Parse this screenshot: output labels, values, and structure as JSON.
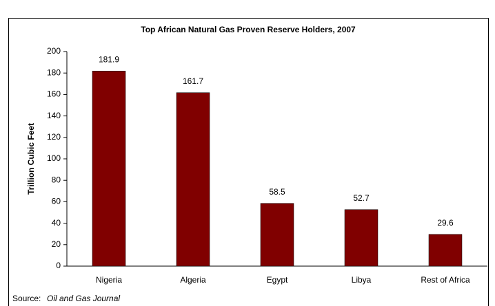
{
  "chart_data": {
    "type": "bar",
    "title": "Top African Natural Gas Proven Reserve Holders, 2007",
    "y_label": "Trillion Cubic Feet",
    "categories": [
      "Nigeria",
      "Algeria",
      "Egypt",
      "Libya",
      "Rest of Africa"
    ],
    "category_colors": [
      "#000000",
      "#8b1a1a",
      "#000000",
      "#000000",
      "#000000"
    ],
    "values": [
      181.9,
      161.7,
      58.5,
      52.7,
      29.6
    ],
    "value_labels": [
      "181.9",
      "161.7",
      "58.5",
      "52.7",
      "29.6"
    ],
    "color": "#800000",
    "ylim": [
      0,
      200
    ],
    "yticks": [
      0,
      20,
      40,
      60,
      80,
      100,
      120,
      140,
      160,
      180,
      200
    ],
    "grid": false,
    "source_prefix": "Source:",
    "source": "Oil and Gas Journal"
  }
}
